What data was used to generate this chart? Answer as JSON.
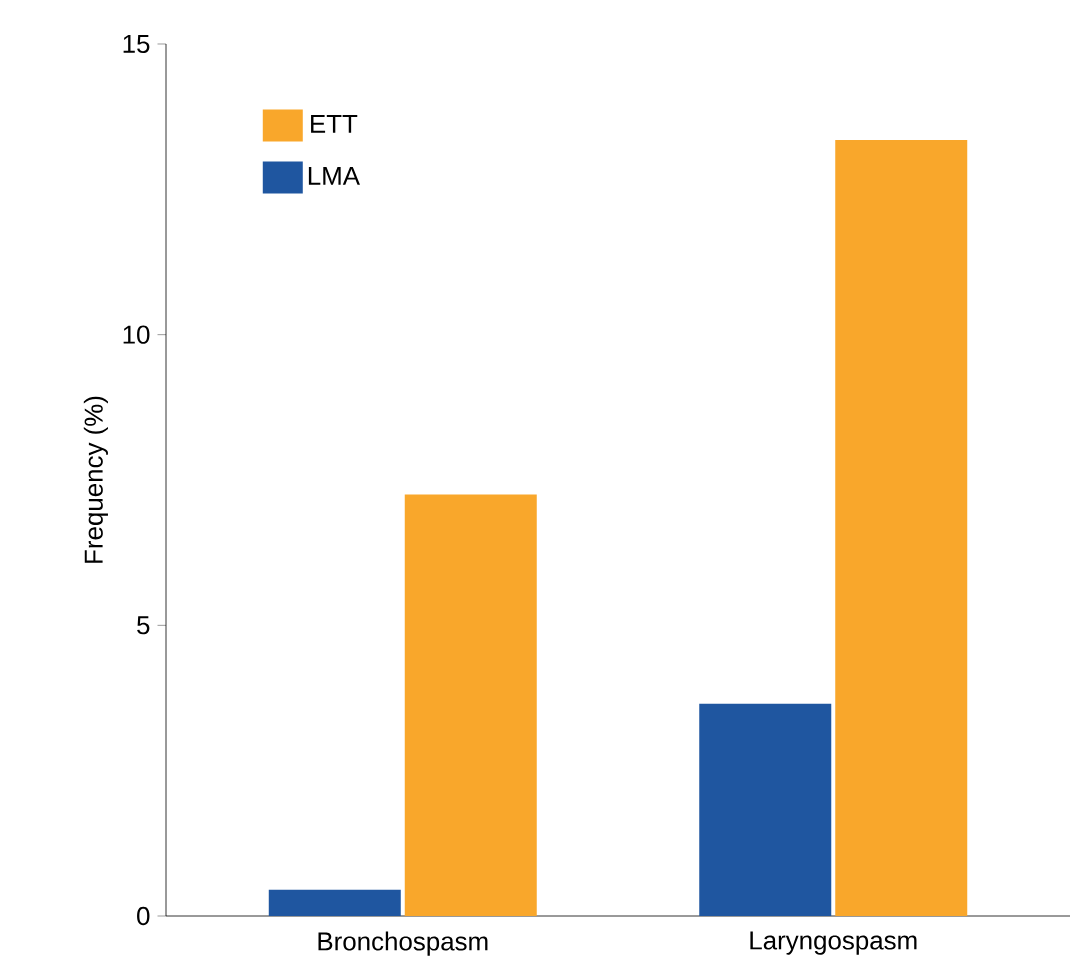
{
  "chart_data": {
    "type": "bar",
    "ylabel": "Frequency (%)",
    "categories": [
      "Bronchospasm",
      "Laryngospasm"
    ],
    "series": [
      {
        "name": "LMA",
        "color": "#1f56a0",
        "values": [
          0.45,
          3.65
        ]
      },
      {
        "name": "ETT",
        "color": "#f9a72b",
        "values": [
          7.25,
          13.35
        ]
      }
    ],
    "ylim": [
      0,
      15
    ],
    "yticks": [
      0,
      5,
      10,
      15
    ],
    "legend": "top left",
    "grid": false
  }
}
